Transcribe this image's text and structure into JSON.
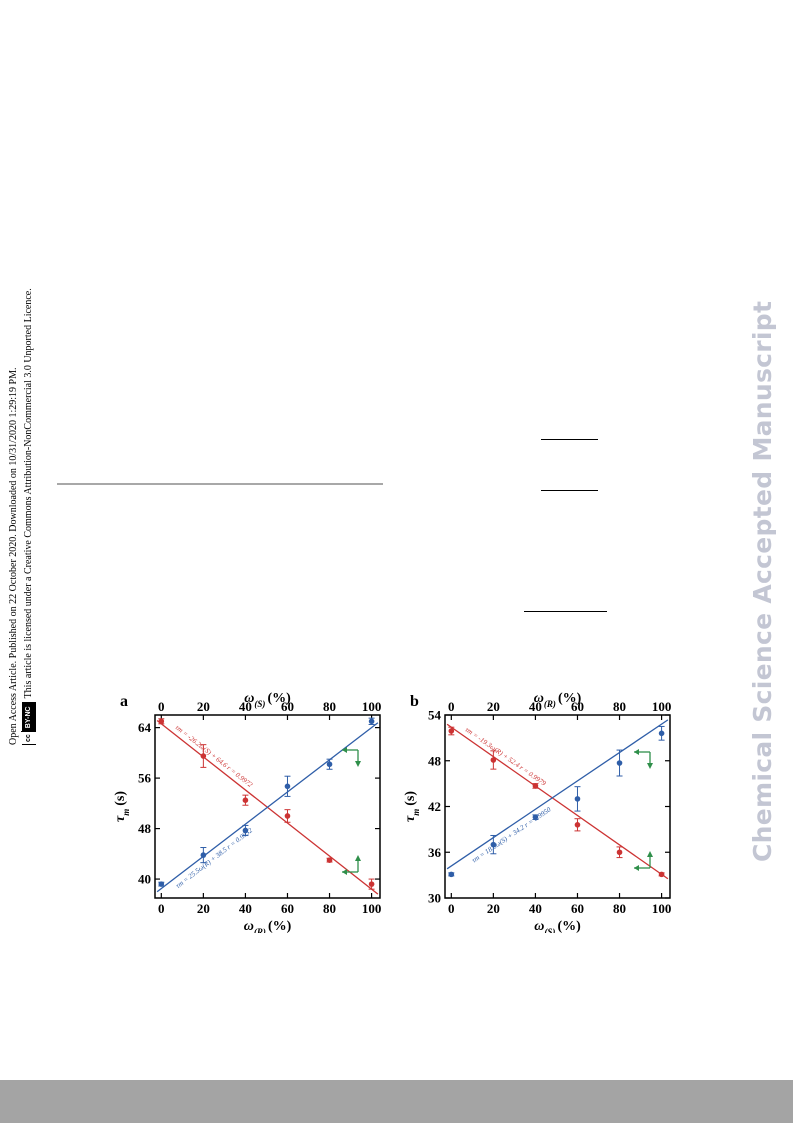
{
  "sidebar": {
    "line1": "Open Access Article. Published on 22 October 2020. Downloaded on 10/31/2020 1:29:19 PM.",
    "badge_cc": "cc",
    "badge_by": "BY-NC",
    "line2": "This article is licensed under a Creative Commons Attribution-NonCommercial 3.0 Unported Licence."
  },
  "watermark": "Chemical Science Accepted Manuscript",
  "figure": {
    "colors": {
      "red": "#cc3333",
      "blue": "#2f5ea8",
      "green": "#2f8f4a",
      "axis": "#000000"
    },
    "chart_data": [
      {
        "type": "scatter",
        "panel_label": "a",
        "top_xlabel": "ω(S) (%)",
        "xlabel": "ω(R) (%)",
        "ylabel": "τm (s)",
        "xlim": [
          -3,
          104
        ],
        "ylim": [
          37,
          66
        ],
        "x_ticks": [
          0,
          20,
          40,
          60,
          80,
          100
        ],
        "y_ticks": [
          40,
          48,
          56,
          64
        ],
        "series": [
          {
            "color": "red",
            "x": [
              0,
              20,
              40,
              60,
              80,
              100
            ],
            "y": [
              65.0,
              59.5,
              52.5,
              50.0,
              43.0,
              39.2
            ],
            "err": [
              0.4,
              1.8,
              0.8,
              1.0,
              0.3,
              0.8
            ],
            "fit": {
              "slope": -26.2,
              "intercept": 64.6
            },
            "eq_label": "τm = -26.2ω(S) + 64.6   r = 0.9972"
          },
          {
            "color": "blue",
            "x": [
              0,
              20,
              40,
              60,
              80,
              100
            ],
            "y": [
              39.2,
              43.8,
              47.7,
              54.7,
              58.2,
              65.0
            ],
            "err": [
              0.3,
              1.2,
              0.8,
              1.6,
              0.8,
              0.5
            ],
            "fit": {
              "slope": 25.5,
              "intercept": 38.5
            },
            "eq_label": "τm = 25.5ω(R) + 38.5   r = 0.9932"
          }
        ]
      },
      {
        "type": "scatter",
        "panel_label": "b",
        "top_xlabel": "ω(R) (%)",
        "xlabel": "ω(S) (%)",
        "ylabel": "τm (s)",
        "xlim": [
          -3,
          104
        ],
        "ylim": [
          30,
          54
        ],
        "x_ticks": [
          0,
          20,
          40,
          60,
          80,
          100
        ],
        "y_ticks": [
          30,
          36,
          42,
          48,
          54
        ],
        "series": [
          {
            "color": "red",
            "x": [
              0,
              20,
              40,
              60,
              80,
              100
            ],
            "y": [
              51.9,
              48.1,
              44.7,
              39.6,
              36.0,
              33.1
            ],
            "err": [
              0.5,
              1.2,
              0.3,
              0.8,
              0.7,
              0.2
            ],
            "fit": {
              "slope": -19.3,
              "intercept": 52.4
            },
            "eq_label": "τm = -19.3ω(R) + 52.4   r = 0.9979"
          },
          {
            "color": "blue",
            "x": [
              0,
              20,
              40,
              60,
              80,
              100
            ],
            "y": [
              33.1,
              37.0,
              40.6,
              43.0,
              47.7,
              51.6
            ],
            "err": [
              0.2,
              1.2,
              0.3,
              1.6,
              1.7,
              0.9
            ],
            "fit": {
              "slope": 18.6,
              "intercept": 34.2
            },
            "eq_label": "τm = 18.6ω(S) + 34.2   r = 0.9950"
          }
        ]
      }
    ]
  }
}
